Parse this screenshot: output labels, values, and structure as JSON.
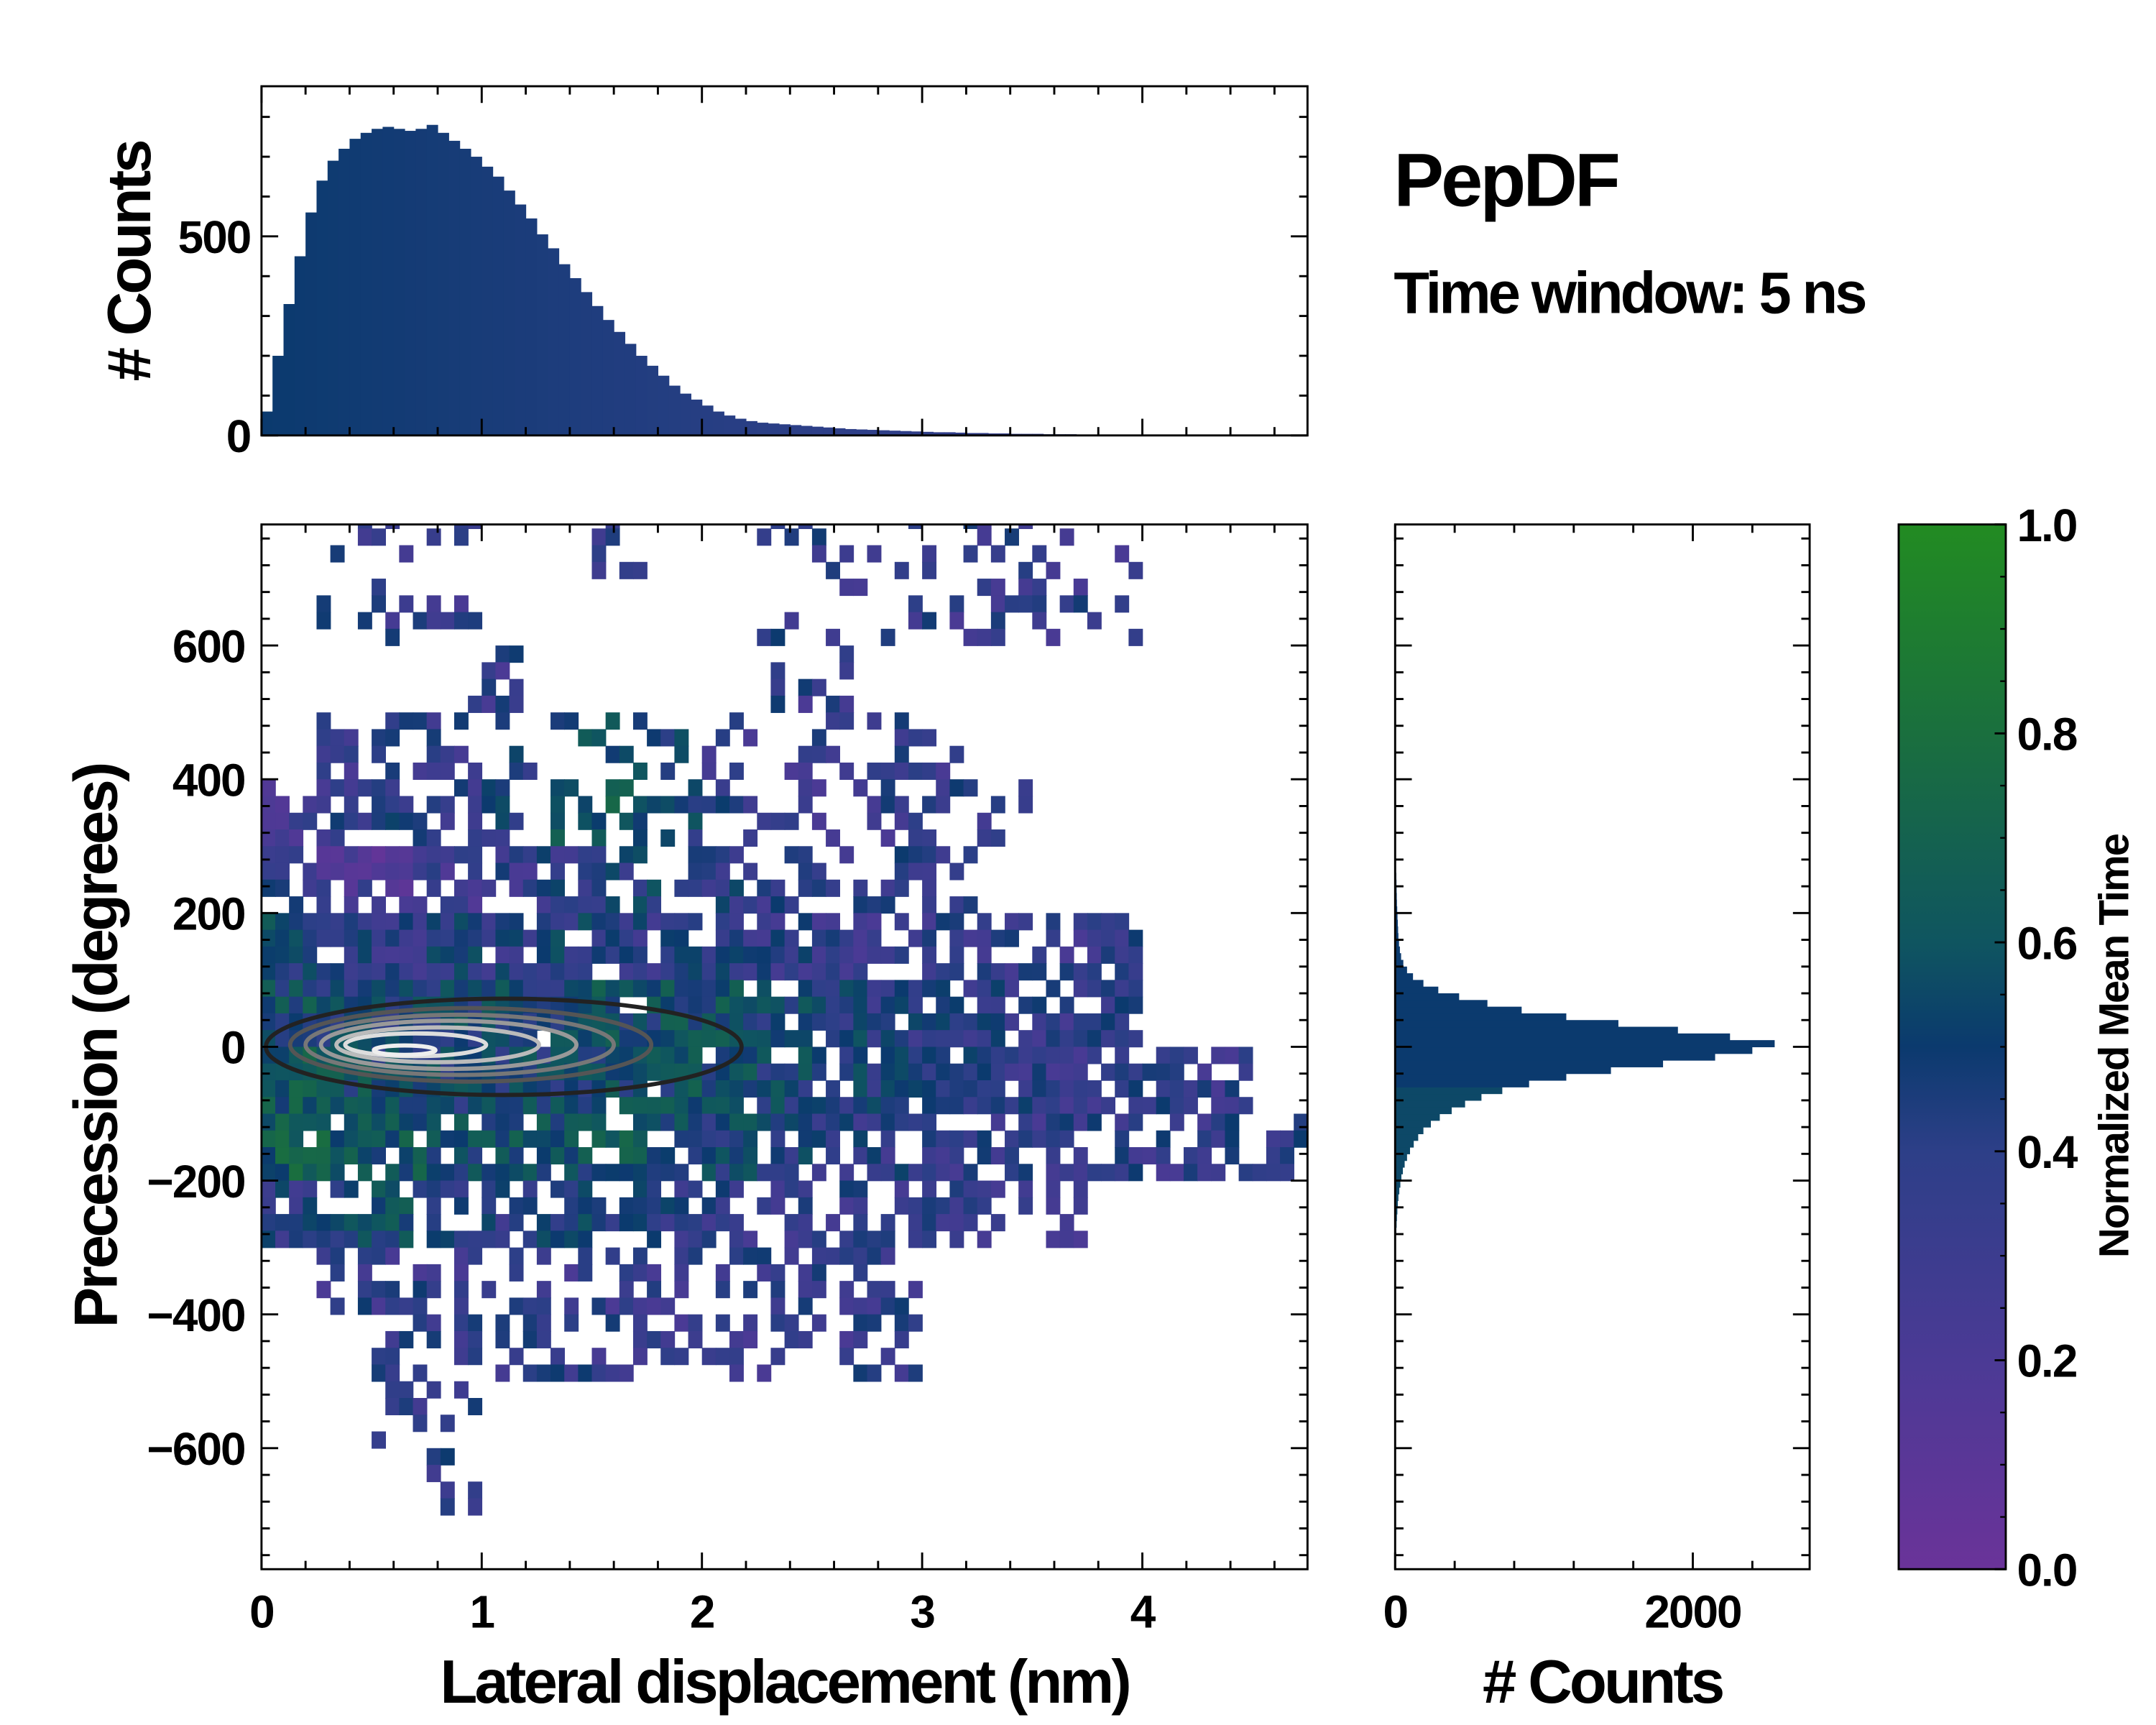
{
  "title": "PepDF",
  "subtitle": "Time window: 5 ns",
  "chart_data": [
    {
      "name": "top-histogram",
      "type": "bar",
      "ylabel": "# Counts",
      "xlim": [
        0,
        4.75
      ],
      "ylim": [
        0,
        877
      ],
      "yticks": [
        0,
        500
      ],
      "bin_width": 0.05,
      "bin_start": 0,
      "values": [
        60,
        200,
        330,
        450,
        560,
        640,
        690,
        720,
        745,
        760,
        770,
        775,
        770,
        765,
        770,
        780,
        760,
        740,
        720,
        700,
        675,
        650,
        615,
        580,
        545,
        505,
        470,
        430,
        395,
        360,
        325,
        290,
        260,
        230,
        200,
        175,
        150,
        125,
        105,
        90,
        75,
        60,
        50,
        42,
        36,
        32,
        30,
        28,
        26,
        24,
        22,
        20,
        18,
        16,
        15,
        14,
        13,
        12,
        11,
        10,
        9,
        8,
        8,
        7,
        6,
        6,
        5,
        5,
        4,
        4,
        4,
        3,
        3,
        3,
        2,
        2,
        2,
        2,
        1,
        1,
        1,
        1,
        1,
        1,
        1,
        0,
        0,
        0,
        0,
        0,
        0,
        0,
        0,
        0,
        0
      ],
      "color": "#0b3a6e"
    },
    {
      "name": "main-heatmap",
      "type": "heatmap",
      "xlabel": "Lateral displacement (nm)",
      "ylabel": "Precession (degrees)",
      "xlim": [
        0,
        4.75
      ],
      "ylim": [
        -781,
        781
      ],
      "xticks": [
        0,
        1,
        2,
        3,
        4
      ],
      "yticks": [
        -600,
        -400,
        -200,
        0,
        200,
        400,
        600
      ],
      "ytick_labels": [
        "−600",
        "−400",
        "−200",
        "0",
        "200",
        "400",
        "600"
      ],
      "cell_x_width": 0.25,
      "cell_y_height": 100,
      "row_top_edges": [
        800,
        700,
        600,
        500,
        400,
        300,
        200,
        100,
        0,
        -100,
        -200,
        -300,
        -400,
        -500,
        -600,
        -700
      ],
      "values": [
        [
          null,
          0.35,
          0.35,
          0.35,
          null,
          null,
          0.35,
          null,
          null,
          0.35,
          0.35,
          0.35,
          0.35,
          0.35,
          0.35,
          0.35,
          null,
          null,
          null
        ],
        [
          null,
          0.35,
          0.35,
          0.35,
          null,
          null,
          null,
          null,
          null,
          0.35,
          0.35,
          0.35,
          0.35,
          0.35,
          0.35,
          0.35,
          null,
          null,
          null
        ],
        [
          null,
          null,
          null,
          0.35,
          0.35,
          null,
          null,
          null,
          null,
          0.35,
          0.35,
          null,
          null,
          null,
          null,
          null,
          null,
          null,
          null
        ],
        [
          null,
          0.3,
          0.35,
          0.35,
          0.4,
          0.5,
          0.55,
          0.45,
          0.35,
          0.35,
          0.35,
          0.35,
          0.35,
          null,
          null,
          null,
          null,
          null,
          null
        ],
        [
          0.3,
          0.35,
          0.4,
          0.4,
          0.45,
          0.55,
          0.6,
          0.5,
          0.4,
          0.35,
          0.35,
          0.35,
          0.35,
          0.35,
          null,
          null,
          null,
          null,
          null
        ],
        [
          0.35,
          0.25,
          0.2,
          0.3,
          0.35,
          0.4,
          0.45,
          0.45,
          0.4,
          0.35,
          0.35,
          0.35,
          0.35,
          null,
          null,
          null,
          null,
          null,
          null
        ],
        [
          0.5,
          0.4,
          0.35,
          0.45,
          0.4,
          0.45,
          0.4,
          0.4,
          0.4,
          0.38,
          0.35,
          0.35,
          0.35,
          0.35,
          0.35,
          0.35,
          null,
          null,
          null
        ],
        [
          0.55,
          0.5,
          0.5,
          0.5,
          0.5,
          0.5,
          0.55,
          0.55,
          0.55,
          0.5,
          0.45,
          0.4,
          0.4,
          0.38,
          0.35,
          0.35,
          null,
          null,
          null
        ],
        [
          0.6,
          0.55,
          0.5,
          0.5,
          0.5,
          0.5,
          0.55,
          0.55,
          0.55,
          0.5,
          0.45,
          0.42,
          0.4,
          0.38,
          0.35,
          0.35,
          0.35,
          0.35,
          null
        ],
        [
          0.65,
          0.65,
          0.6,
          0.55,
          0.55,
          0.55,
          0.6,
          0.55,
          0.5,
          0.45,
          0.4,
          0.38,
          0.35,
          0.35,
          0.35,
          0.35,
          0.35,
          0.35,
          0.35
        ],
        [
          0.4,
          0.5,
          0.55,
          0.45,
          0.4,
          0.45,
          0.45,
          0.4,
          0.35,
          0.35,
          0.35,
          0.35,
          0.35,
          0.35,
          0.35,
          null,
          null,
          null,
          null
        ],
        [
          null,
          0.35,
          0.35,
          0.35,
          0.35,
          0.35,
          0.35,
          0.35,
          0.35,
          0.35,
          0.35,
          0.35,
          null,
          null,
          null,
          null,
          null,
          null,
          null
        ],
        [
          null,
          null,
          0.35,
          0.35,
          0.35,
          0.35,
          0.35,
          0.35,
          0.35,
          0.35,
          0.35,
          0.35,
          null,
          null,
          null,
          null,
          null,
          null,
          null
        ],
        [
          null,
          null,
          0.35,
          0.35,
          null,
          null,
          null,
          null,
          null,
          null,
          null,
          null,
          null,
          null,
          null,
          null,
          null,
          null,
          null
        ],
        [
          null,
          null,
          null,
          0.35,
          null,
          null,
          null,
          null,
          null,
          null,
          null,
          null,
          null,
          null,
          null,
          null,
          null,
          null,
          null
        ],
        [
          null,
          null,
          null,
          null,
          null,
          null,
          null,
          null,
          null,
          null,
          null,
          null,
          null,
          null,
          null,
          null,
          null,
          null,
          null
        ]
      ],
      "contours": [
        {
          "cx": 1.1,
          "cy": 0,
          "rx": 1.08,
          "ry": 72,
          "color": "#222222"
        },
        {
          "cx": 0.95,
          "cy": 3,
          "rx": 0.82,
          "ry": 55,
          "color": "#555555"
        },
        {
          "cx": 0.9,
          "cy": 3,
          "rx": 0.7,
          "ry": 45,
          "color": "#777777"
        },
        {
          "cx": 0.85,
          "cy": 3,
          "rx": 0.58,
          "ry": 36,
          "color": "#999999"
        },
        {
          "cx": 0.8,
          "cy": 3,
          "rx": 0.46,
          "ry": 26,
          "color": "#bbbbbb"
        },
        {
          "cx": 0.7,
          "cy": 3,
          "rx": 0.32,
          "ry": 17,
          "color": "#dddddd"
        },
        {
          "cx": 0.65,
          "cy": -5,
          "rx": 0.14,
          "ry": 7,
          "color": "#eeeeee"
        }
      ]
    },
    {
      "name": "right-histogram",
      "type": "bar",
      "orientation": "horizontal",
      "xlabel": "# Counts",
      "xlim": [
        0,
        2785
      ],
      "xticks": [
        0,
        2000
      ],
      "bin_height": 10,
      "bin_start": -300,
      "values": [
        5,
        6,
        8,
        10,
        12,
        15,
        18,
        22,
        28,
        35,
        42,
        52,
        64,
        80,
        100,
        125,
        155,
        190,
        240,
        300,
        380,
        470,
        580,
        720,
        900,
        1150,
        1450,
        1800,
        2150,
        2400,
        2550,
        2250,
        1900,
        1500,
        1150,
        850,
        620,
        430,
        290,
        190,
        120,
        80,
        55,
        40,
        32,
        26,
        22,
        20,
        18,
        16,
        14,
        12,
        11,
        10,
        9,
        8,
        6,
        5,
        4,
        3
      ],
      "color": "#0b3a6e"
    },
    {
      "name": "colorbar",
      "type": "colorbar",
      "label": "Normalized Mean Time",
      "range": [
        0,
        1
      ],
      "ticks": [
        "0.0",
        "0.2",
        "0.4",
        "0.6",
        "0.8",
        "1.0"
      ],
      "stops": [
        {
          "v": 0.0,
          "color": "#6a3399"
        },
        {
          "v": 0.2,
          "color": "#4b3a95"
        },
        {
          "v": 0.4,
          "color": "#2d3f88"
        },
        {
          "v": 0.5,
          "color": "#0b3a6e"
        },
        {
          "v": 0.6,
          "color": "#0f5560"
        },
        {
          "v": 0.8,
          "color": "#1a6f3e"
        },
        {
          "v": 1.0,
          "color": "#228b22"
        }
      ]
    }
  ]
}
